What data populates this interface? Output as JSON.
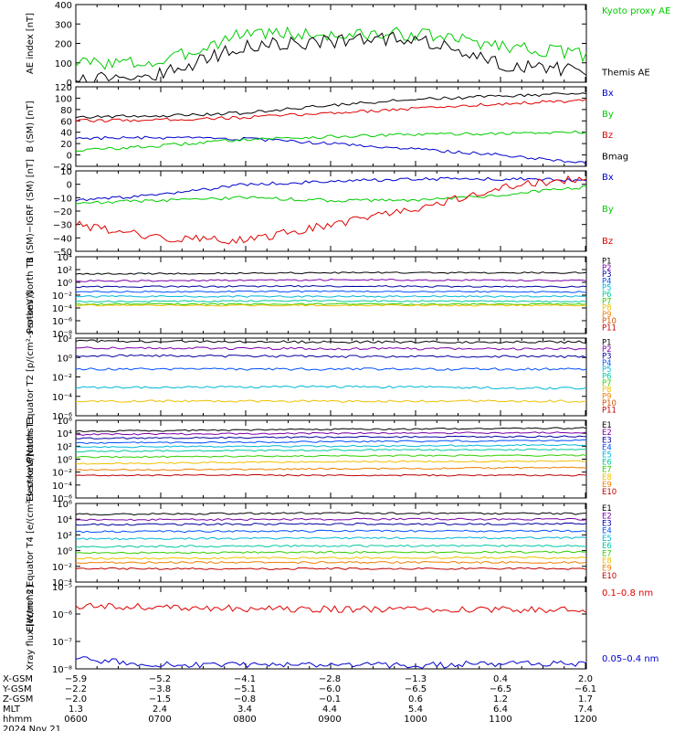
{
  "colors": {
    "black": "#000000",
    "red": "#e00000",
    "green": "#00cc00",
    "blue": "#0000cc",
    "purple": "#7b00a8",
    "navy": "#0000a0",
    "cyan": "#00b8d8",
    "teal": "#00c8a0",
    "lime": "#30d000",
    "yellow": "#f0c000",
    "orange": "#f08000",
    "darkorange": "#d05000",
    "darkred": "#c00000"
  },
  "chart_data": [
    {
      "type": "line",
      "ylabel": "AE index [nT]",
      "ylim": [
        0,
        400
      ],
      "yticks": [
        "0",
        "100",
        "200",
        "300",
        "400"
      ],
      "series": [
        {
          "name": "Kyoto proxy AE",
          "color": "#00cc00",
          "x": [
            "0600",
            "0700",
            "0800",
            "0900",
            "1000",
            "1100",
            "1200"
          ],
          "values": [
            100,
            100,
            260,
            240,
            250,
            190,
            140
          ]
        },
        {
          "name": "Themis AE",
          "color": "#000000",
          "x": [
            "0600",
            "0700",
            "0800",
            "0900",
            "1000",
            "1100",
            "1200"
          ],
          "values": [
            25,
            40,
            190,
            210,
            230,
            90,
            60
          ]
        }
      ]
    },
    {
      "type": "line",
      "ylabel": "B (SM) [nT]",
      "ylim": [
        -20,
        120
      ],
      "yticks": [
        "−20",
        "0",
        "20",
        "40",
        "60",
        "80",
        "100",
        "120"
      ],
      "series": [
        {
          "name": "Bx",
          "color": "#0000cc",
          "x": [
            "0600",
            "0700",
            "0800",
            "0900",
            "1000",
            "1100",
            "1200"
          ],
          "values": [
            30,
            30,
            28,
            20,
            10,
            0,
            -14
          ]
        },
        {
          "name": "By",
          "color": "#00cc00",
          "x": [
            "0600",
            "0700",
            "0800",
            "0900",
            "1000",
            "1100",
            "1200"
          ],
          "values": [
            8,
            16,
            28,
            32,
            36,
            38,
            40
          ]
        },
        {
          "name": "Bz",
          "color": "#e00000",
          "x": [
            "0600",
            "0700",
            "0800",
            "0900",
            "1000",
            "1100",
            "1200"
          ],
          "values": [
            60,
            62,
            66,
            74,
            82,
            90,
            96
          ]
        },
        {
          "name": "Bmag",
          "color": "#000000",
          "x": [
            "0600",
            "0700",
            "0800",
            "0900",
            "1000",
            "1100",
            "1200"
          ],
          "values": [
            67,
            69,
            74,
            88,
            98,
            104,
            108
          ]
        }
      ]
    },
    {
      "type": "line",
      "ylabel": "B (SM)−IGRF (SM) [nT]",
      "ylim": [
        -50,
        10
      ],
      "yticks": [
        "−50",
        "−40",
        "−30",
        "−20",
        "−10",
        "0",
        "10"
      ],
      "series": [
        {
          "name": "Bx",
          "color": "#0000cc",
          "x": [
            "0600",
            "0700",
            "0800",
            "0900",
            "1000",
            "1100",
            "1200"
          ],
          "values": [
            -12,
            -8,
            0,
            2,
            4,
            4,
            3
          ]
        },
        {
          "name": "By",
          "color": "#00cc00",
          "x": [
            "0600",
            "0700",
            "0800",
            "0900",
            "1000",
            "1100",
            "1200"
          ],
          "values": [
            -14,
            -12,
            -10,
            -12,
            -12,
            -8,
            -2
          ]
        },
        {
          "name": "Bz",
          "color": "#e00000",
          "x": [
            "0600",
            "0700",
            "0800",
            "0900",
            "1000",
            "1100",
            "1200"
          ],
          "values": [
            -30,
            -40,
            -42,
            -30,
            -18,
            -2,
            5
          ]
        }
      ]
    },
    {
      "type": "line",
      "ylabel": "Protons North T1",
      "scale": "log",
      "ylim": [
        -8,
        4
      ],
      "yticks": [
        "10⁴",
        "10²",
        "10⁰",
        "10⁻²",
        "10⁻⁴",
        "10⁻⁶",
        "10⁻⁸"
      ],
      "series": [
        {
          "name": "P1",
          "color": "#000000",
          "values": [
            1.3,
            1.5,
            1.5
          ]
        },
        {
          "name": "P2",
          "color": "#7b00a8",
          "values": [
            0.2,
            0.4,
            0.3
          ]
        },
        {
          "name": "P3",
          "color": "#0000a0",
          "values": [
            -0.7,
            -0.6,
            -0.7
          ]
        },
        {
          "name": "P4",
          "color": "#0050ff",
          "values": [
            -1.5,
            -1.4,
            -1.5
          ]
        },
        {
          "name": "P5",
          "color": "#00b8d8",
          "values": [
            -2.2,
            -2.2,
            -2.2
          ]
        },
        {
          "name": "P6",
          "color": "#00c8a0",
          "values": [
            -3.0,
            -2.9,
            -3.0
          ]
        },
        {
          "name": "P7",
          "color": "#30d000",
          "values": [
            -3.4,
            -3.4,
            -3.4
          ]
        },
        {
          "name": "P8",
          "color": "#f0c000",
          "values": [
            -3.6,
            -3.6,
            -3.6
          ]
        },
        {
          "name": "P9",
          "color": "#f08000",
          "values": []
        },
        {
          "name": "P10",
          "color": "#d05000",
          "values": []
        },
        {
          "name": "P11",
          "color": "#c00000",
          "values": []
        }
      ]
    },
    {
      "type": "line",
      "ylabel": "Protons Equator T2 [p/(cm²-s-sr-keV)]",
      "scale": "log",
      "ylim": [
        -6,
        2
      ],
      "yticks": [
        "10²",
        "10⁰",
        "10⁻²",
        "10⁻⁴",
        "10⁻⁶"
      ],
      "series": [
        {
          "name": "P1",
          "color": "#000000",
          "values": [
            1.7,
            1.6,
            1.6
          ]
        },
        {
          "name": "P2",
          "color": "#7b00a8",
          "values": [
            1.0,
            0.9,
            0.9
          ]
        },
        {
          "name": "P3",
          "color": "#0000a0",
          "values": [
            0.2,
            0.1,
            0.1
          ]
        },
        {
          "name": "P4",
          "color": "#0050ff",
          "values": [
            -1.2,
            -1.2,
            -1.2
          ]
        },
        {
          "name": "P5",
          "color": "#00b8d8",
          "values": [
            -3.1,
            -3.0,
            -3.2
          ]
        },
        {
          "name": "P6",
          "color": "#00c8a0",
          "values": []
        },
        {
          "name": "P7",
          "color": "#30d000",
          "values": []
        },
        {
          "name": "P8",
          "color": "#f0c000",
          "values": [
            -4.5,
            -4.5
          ]
        },
        {
          "name": "P9",
          "color": "#f08000",
          "values": []
        },
        {
          "name": "P10",
          "color": "#d05000",
          "values": []
        },
        {
          "name": "P11",
          "color": "#c00000",
          "values": []
        }
      ]
    },
    {
      "type": "line",
      "ylabel": "Electrons North T3",
      "scale": "log",
      "ylim": [
        -6,
        6
      ],
      "yticks": [
        "10⁶",
        "10⁴",
        "10²",
        "10⁰",
        "10⁻²",
        "10⁻⁴",
        "10⁻⁶"
      ],
      "series": [
        {
          "name": "E1",
          "color": "#000000",
          "values": [
            4.3,
            4.6,
            4.8
          ]
        },
        {
          "name": "E2",
          "color": "#7b00a8",
          "values": [
            3.8,
            4.0,
            4.1
          ]
        },
        {
          "name": "E3",
          "color": "#0000a0",
          "values": [
            3.2,
            3.4,
            3.5
          ]
        },
        {
          "name": "E4",
          "color": "#0050ff",
          "values": [
            2.5,
            2.7,
            2.9
          ]
        },
        {
          "name": "E5",
          "color": "#00b8d8",
          "values": [
            1.9,
            2.0,
            2.2
          ]
        },
        {
          "name": "E6",
          "color": "#00c8a0",
          "values": [
            1.2,
            1.4,
            1.5
          ]
        },
        {
          "name": "E7",
          "color": "#30d000",
          "values": [
            0.3,
            0.5,
            0.6
          ]
        },
        {
          "name": "E8",
          "color": "#f0c000",
          "values": [
            -0.7,
            -0.4,
            -0.3
          ]
        },
        {
          "name": "E9",
          "color": "#f08000",
          "values": [
            -1.7,
            -1.5,
            -1.3
          ]
        },
        {
          "name": "E10",
          "color": "#c00000",
          "values": [
            -2.5,
            -2.5,
            -2.5
          ]
        }
      ]
    },
    {
      "type": "line",
      "ylabel": "Electrons Equator T4 [e/(cm²-s-sr-keV)]",
      "scale": "log",
      "ylim": [
        -4,
        6
      ],
      "yticks": [
        "10⁶",
        "10⁴",
        "10²",
        "10⁰",
        "10⁻²",
        "10⁻⁴"
      ],
      "series": [
        {
          "name": "E1",
          "color": "#000000",
          "values": [
            4.6,
            4.8,
            4.7
          ]
        },
        {
          "name": "E2",
          "color": "#7b00a8",
          "values": [
            3.9,
            4.0,
            4.0
          ]
        },
        {
          "name": "E3",
          "color": "#0000a0",
          "values": [
            3.3,
            3.4,
            3.4
          ]
        },
        {
          "name": "E4",
          "color": "#0050ff",
          "values": [
            2.4,
            2.5,
            2.5
          ]
        },
        {
          "name": "E5",
          "color": "#00b8d8",
          "values": [
            1.5,
            1.6,
            1.6
          ]
        },
        {
          "name": "E6",
          "color": "#00c8a0",
          "values": [
            0.5,
            0.6,
            0.6
          ]
        },
        {
          "name": "E7",
          "color": "#30d000",
          "values": [
            -0.3,
            -0.2,
            -0.2
          ]
        },
        {
          "name": "E8",
          "color": "#f0c000",
          "values": [
            -1.0,
            -0.9,
            -0.9
          ]
        },
        {
          "name": "E9",
          "color": "#f08000",
          "values": [
            -1.5,
            -1.5,
            -1.5
          ]
        },
        {
          "name": "E10",
          "color": "#c00000",
          "values": [
            -2.3,
            -2.3,
            -2.3
          ]
        }
      ]
    },
    {
      "type": "line",
      "ylabel": "Xray flux [W/m^2]",
      "scale": "log",
      "ylim": [
        -8,
        -5
      ],
      "yticks": [
        "10⁻⁵",
        "10⁻⁶",
        "10⁻⁷",
        "10⁻⁸"
      ],
      "series": [
        {
          "name": "0.1–0.8 nm",
          "color": "#e00000",
          "values": [
            -5.7,
            -5.75,
            -5.8,
            -5.82,
            -5.82,
            -5.84,
            -5.86
          ]
        },
        {
          "name": "0.05–0.4 nm",
          "color": "#0000cc",
          "values": [
            -7.65,
            -7.85,
            -7.88,
            -7.87,
            -7.88,
            -7.8,
            -7.82
          ]
        }
      ]
    }
  ],
  "x_axis": {
    "rows": [
      {
        "label": "X-GSM",
        "values": [
          "−5.9",
          "−5.2",
          "−4.1",
          "−2.8",
          "−1.3",
          "0.4",
          "2.0"
        ]
      },
      {
        "label": "Y-GSM",
        "values": [
          "−2.2",
          "−3.8",
          "−5.1",
          "−6.0",
          "−6.5",
          "−6.5",
          "−6.1"
        ]
      },
      {
        "label": "Z-GSM",
        "values": [
          "−2.0",
          "−1.5",
          "−0.8",
          "−0.1",
          "0.6",
          "1.2",
          "1.7"
        ]
      },
      {
        "label": "MLT",
        "values": [
          "1.3",
          "2.4",
          "3.4",
          "4.4",
          "5.4",
          "6.4",
          "7.4"
        ]
      },
      {
        "label": "hhmm",
        "values": [
          "0600",
          "0700",
          "0800",
          "0900",
          "1000",
          "1100",
          "1200"
        ]
      }
    ],
    "date": "2024 Nov 21"
  }
}
